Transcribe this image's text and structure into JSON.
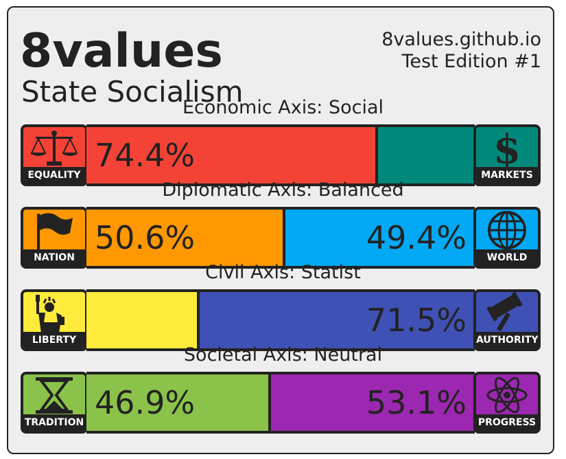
{
  "header": {
    "title": "8values",
    "ideology": "State Socialism",
    "site": "8values.github.io",
    "edition": "Test Edition #1"
  },
  "axes": [
    {
      "label": "Economic Axis: Social",
      "left": {
        "name": "EQUALITY",
        "icon": "scales-icon",
        "color": "#f44336",
        "value": 74.4,
        "value_text": "74.4%"
      },
      "right": {
        "name": "MARKETS",
        "icon": "dollar-icon",
        "color": "#00897b",
        "value": 25.6,
        "value_text": ""
      }
    },
    {
      "label": "Diplomatic Axis: Balanced",
      "left": {
        "name": "NATION",
        "icon": "flag-icon",
        "color": "#ff9800",
        "value": 50.6,
        "value_text": "50.6%"
      },
      "right": {
        "name": "WORLD",
        "icon": "globe-icon",
        "color": "#03a9f4",
        "value": 49.4,
        "value_text": "49.4%"
      }
    },
    {
      "label": "Civil Axis: Statist",
      "left": {
        "name": "LIBERTY",
        "icon": "statue-of-liberty-icon",
        "color": "#ffeb3b",
        "value": 28.5,
        "value_text": ""
      },
      "right": {
        "name": "AUTHORITY",
        "icon": "gavel-icon",
        "color": "#3f51b5",
        "value": 71.5,
        "value_text": "71.5%"
      }
    },
    {
      "label": "Societal Axis: Neutral",
      "left": {
        "name": "TRADITION",
        "icon": "hourglass-icon",
        "color": "#8bc34a",
        "value": 46.9,
        "value_text": "46.9%"
      },
      "right": {
        "name": "PROGRESS",
        "icon": "atom-icon",
        "color": "#9c27b0",
        "value": 53.1,
        "value_text": "53.1%"
      }
    }
  ]
}
